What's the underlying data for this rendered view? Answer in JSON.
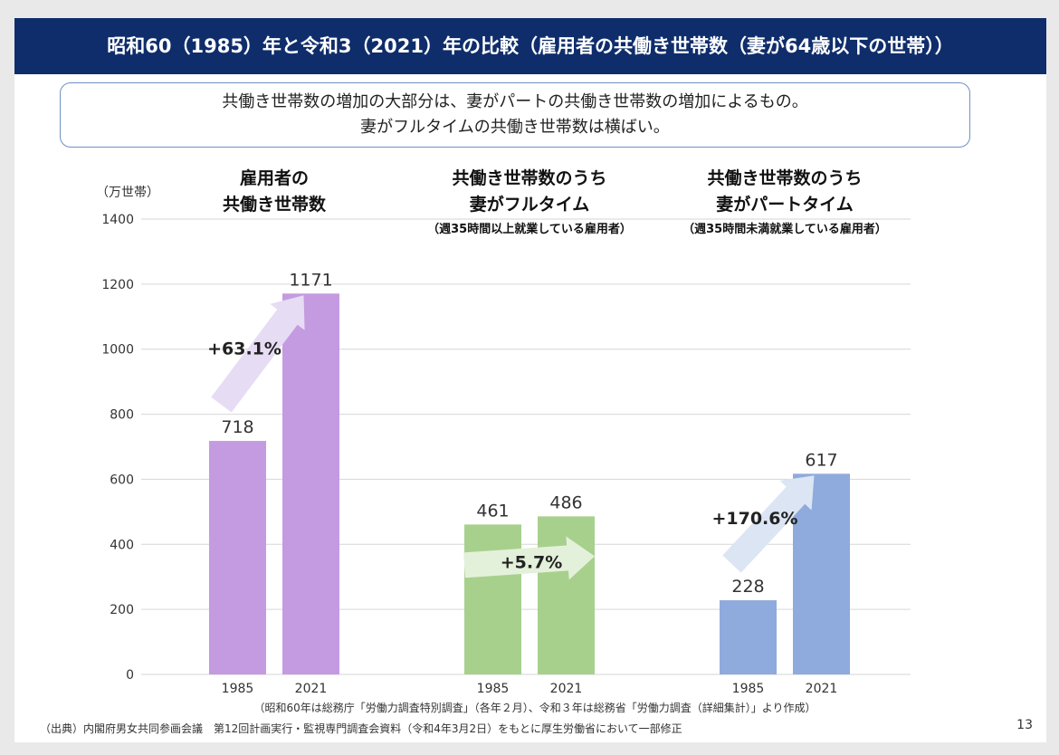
{
  "title": "昭和60（1985）年と令和3（2021）年の比較（雇用者の共働き世帯数（妻が64歳以下の世帯））",
  "summary": {
    "line1": "共働き世帯数の増加の大部分は、妻がパートの共働き世帯数の増加によるもの。",
    "line2": "妻がフルタイムの共働き世帯数は横ばい。"
  },
  "chart_data": {
    "type": "bar",
    "y_unit": "（万世帯）",
    "ylim": [
      0,
      1400
    ],
    "yticks": [
      0,
      200,
      400,
      600,
      800,
      1000,
      1200,
      1400
    ],
    "grid": true,
    "groups": [
      {
        "title_lines": [
          "雇用者の",
          "共働き世帯数"
        ],
        "subtitle": "",
        "color": "#c49be0",
        "arrow_color": "#e6dcf3",
        "categories": [
          "1985",
          "2021"
        ],
        "values": [
          718,
          1171
        ],
        "change": "+63.1%"
      },
      {
        "title_lines": [
          "共働き世帯数のうち",
          "妻がフルタイム"
        ],
        "subtitle": "（週35時間以上就業している雇用者）",
        "color": "#a8d08d",
        "arrow_color": "#e4f1da",
        "categories": [
          "1985",
          "2021"
        ],
        "values": [
          461,
          486
        ],
        "change": "+5.7%"
      },
      {
        "title_lines": [
          "共働き世帯数のうち",
          "妻がパートタイム"
        ],
        "subtitle": "（週35時間未満就業している雇用者）",
        "color": "#8faadc",
        "arrow_color": "#dce5f4",
        "categories": [
          "1985",
          "2021"
        ],
        "values": [
          228,
          617
        ],
        "change": "+170.6%"
      }
    ]
  },
  "notes": {
    "survey": "（昭和60年は総務庁「労働力調査特別調査」（各年２月）、令和３年は総務省「労働力調査（詳細集計）」より作成）",
    "source": "（出典）内閣府男女共同参画会議　第12回計画実行・監視専門調査会資料（令和4年3月2日）をもとに厚生労働省において一部修正"
  },
  "page_number": "13"
}
